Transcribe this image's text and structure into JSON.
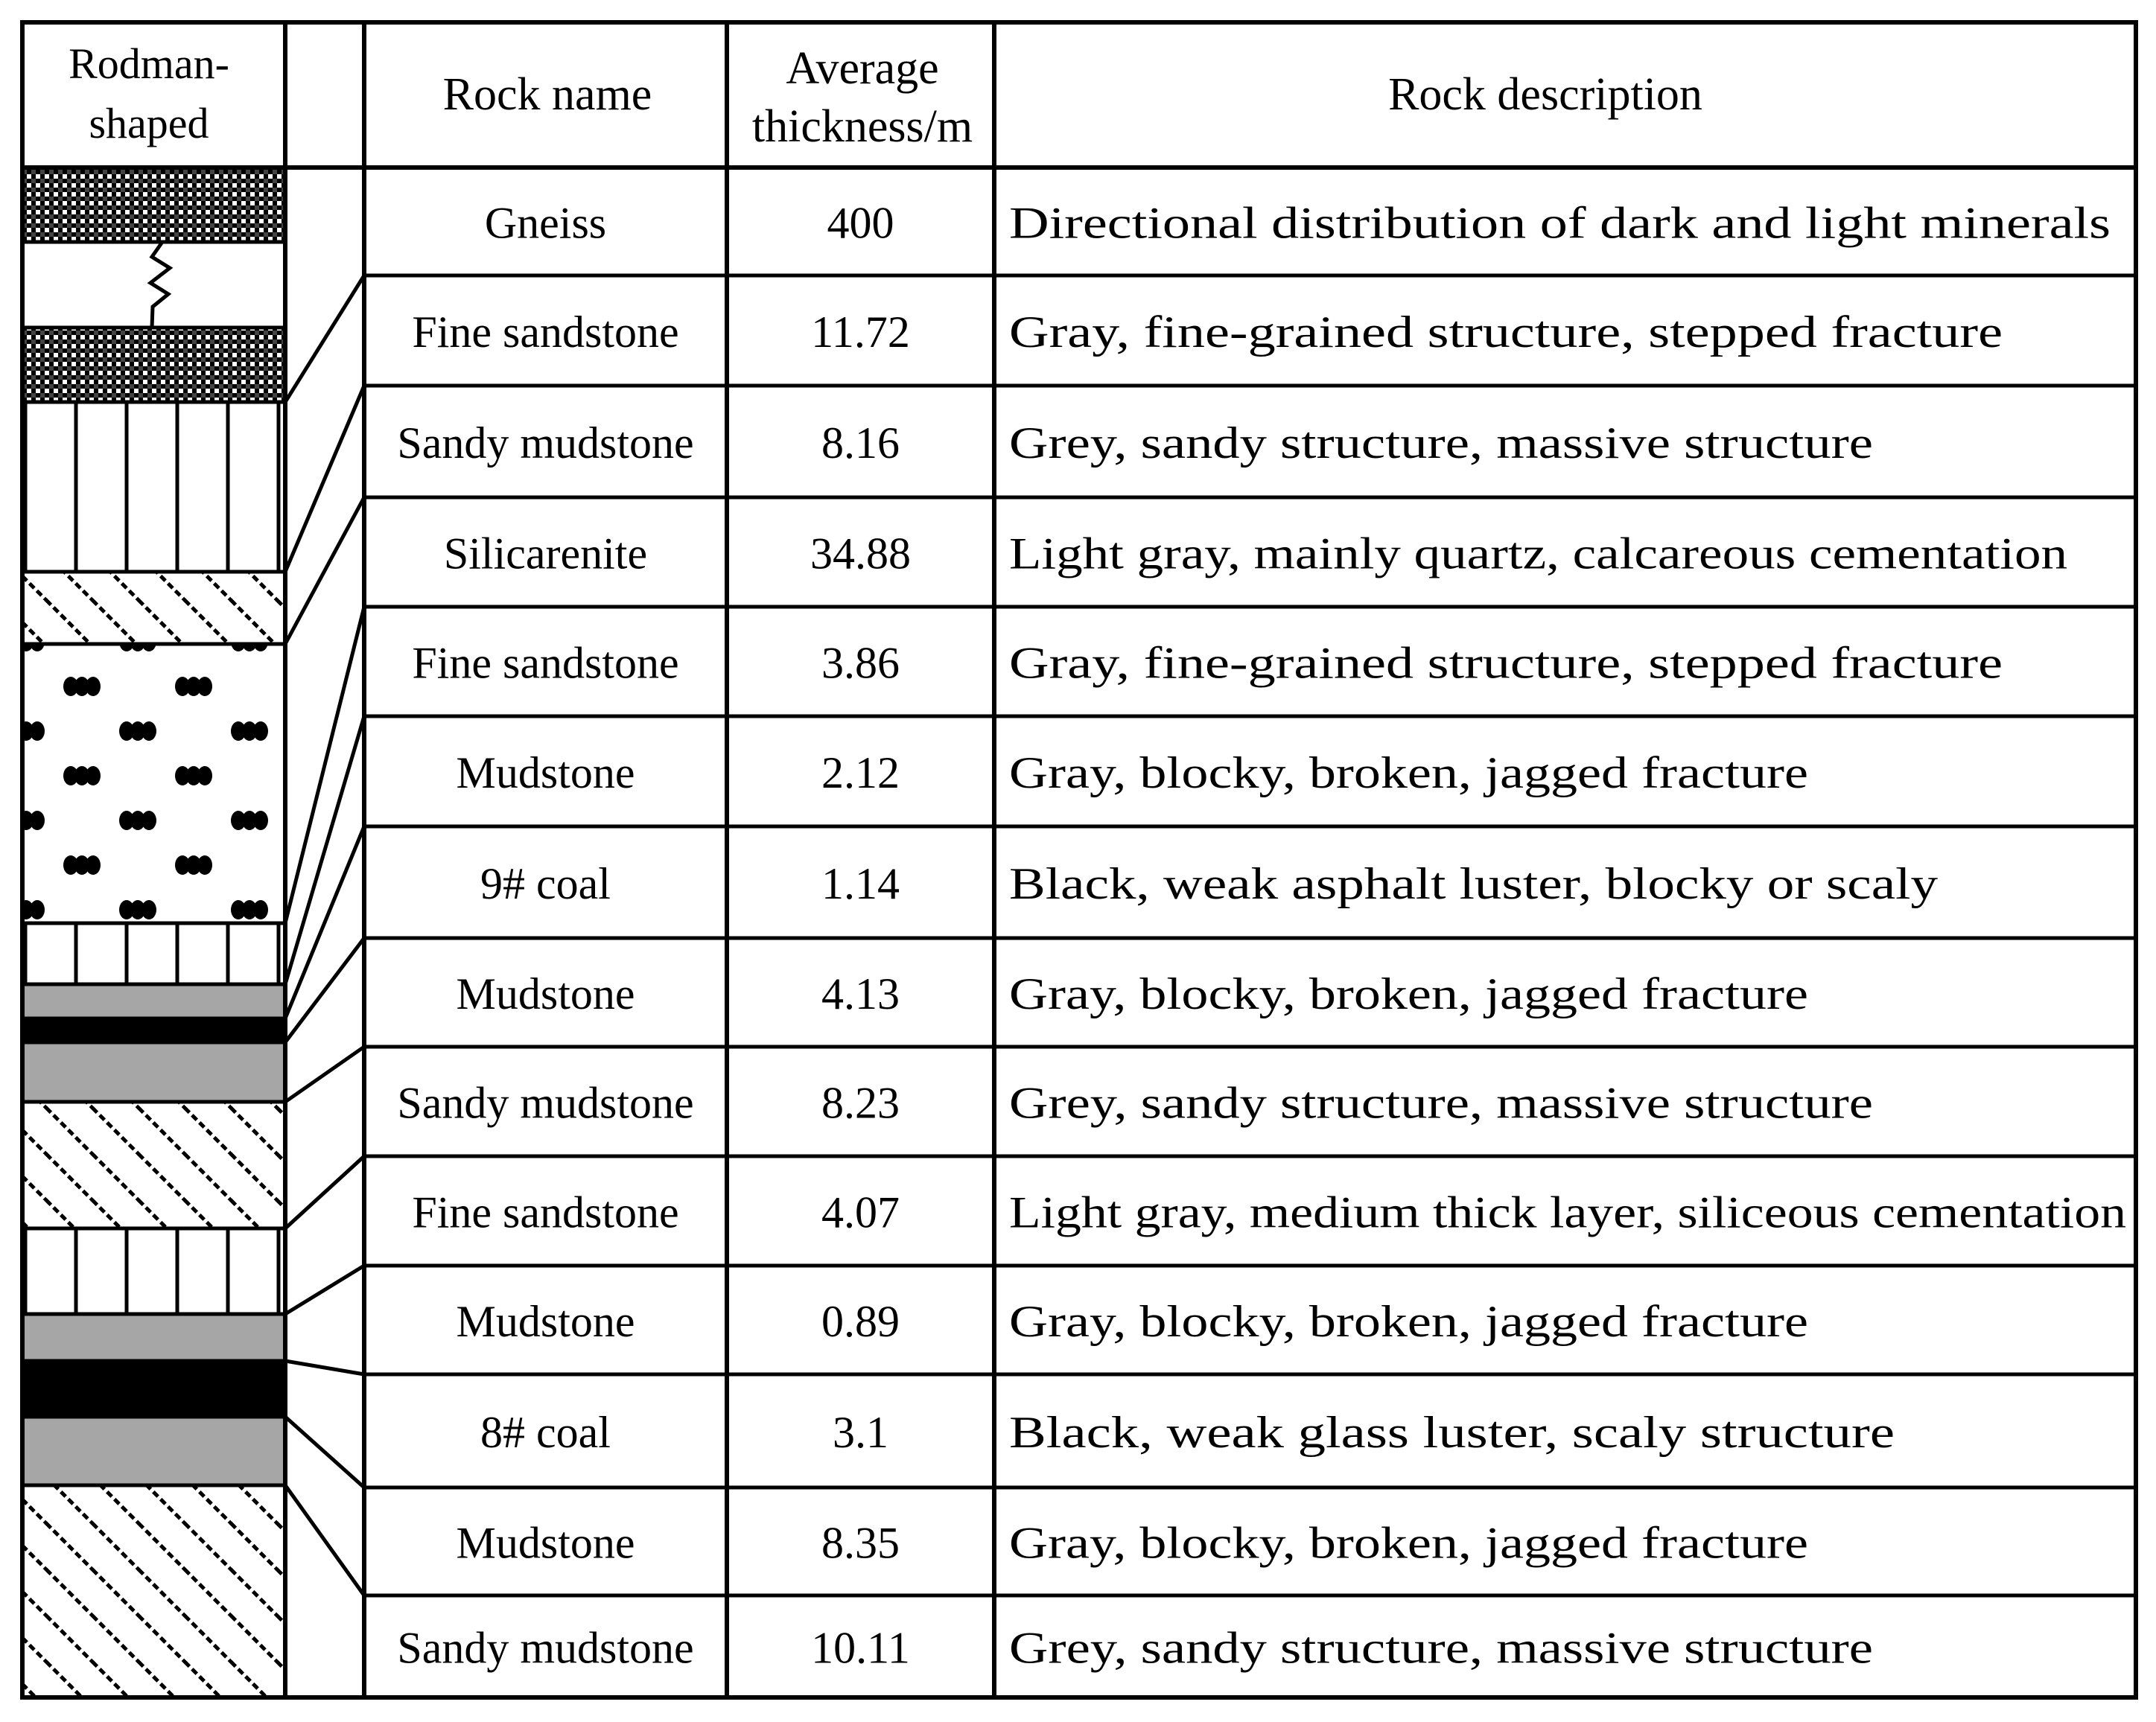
{
  "header": {
    "column_log": [
      "Rodman-",
      "shaped"
    ],
    "column_rock_name": "Rock name",
    "column_thickness": [
      "Average",
      "thickness/m"
    ],
    "column_description": "Rock description"
  },
  "rows": [
    {
      "name": "Gneiss",
      "thickness": "400",
      "description": "Directional distribution of dark and light minerals"
    },
    {
      "name": "Fine sandstone",
      "thickness": "11.72",
      "description": "Gray, fine-grained structure, stepped fracture"
    },
    {
      "name": "Sandy mudstone",
      "thickness": "8.16",
      "description": "Grey, sandy structure, massive structure"
    },
    {
      "name": "Silicarenite",
      "thickness": "34.88",
      "description": "Light gray, mainly quartz, calcareous cementation"
    },
    {
      "name": "Fine sandstone",
      "thickness": "3.86",
      "description": "Gray, fine-grained structure, stepped fracture"
    },
    {
      "name": "Mudstone",
      "thickness": "2.12",
      "description": "Gray, blocky, broken, jagged fracture"
    },
    {
      "name": "9# coal",
      "thickness": "1.14",
      "description": "Black, weak asphalt luster, blocky or scaly"
    },
    {
      "name": "Mudstone",
      "thickness": "4.13",
      "description": "Gray, blocky, broken, jagged fracture"
    },
    {
      "name": "Sandy mudstone",
      "thickness": "8.23",
      "description": "Grey, sandy structure, massive structure"
    },
    {
      "name": "Fine sandstone",
      "thickness": "4.07",
      "description": "Light gray, medium thick layer, siliceous cementation"
    },
    {
      "name": "Mudstone",
      "thickness": "0.89",
      "description": "Gray, blocky, broken, jagged fracture"
    },
    {
      "name": "8# coal",
      "thickness": "3.1",
      "description": "Black, weak glass luster, scaly structure"
    },
    {
      "name": "Mudstone",
      "thickness": "8.35",
      "description": "Gray, blocky, broken, jagged fracture"
    },
    {
      "name": "Sandy mudstone",
      "thickness": "10.11",
      "description": "Grey, sandy structure, massive structure"
    }
  ],
  "colors": {
    "line": "#000000",
    "mudstone_fill": "#a6a6a6",
    "coal_fill": "#000000",
    "background": "#ffffff"
  }
}
